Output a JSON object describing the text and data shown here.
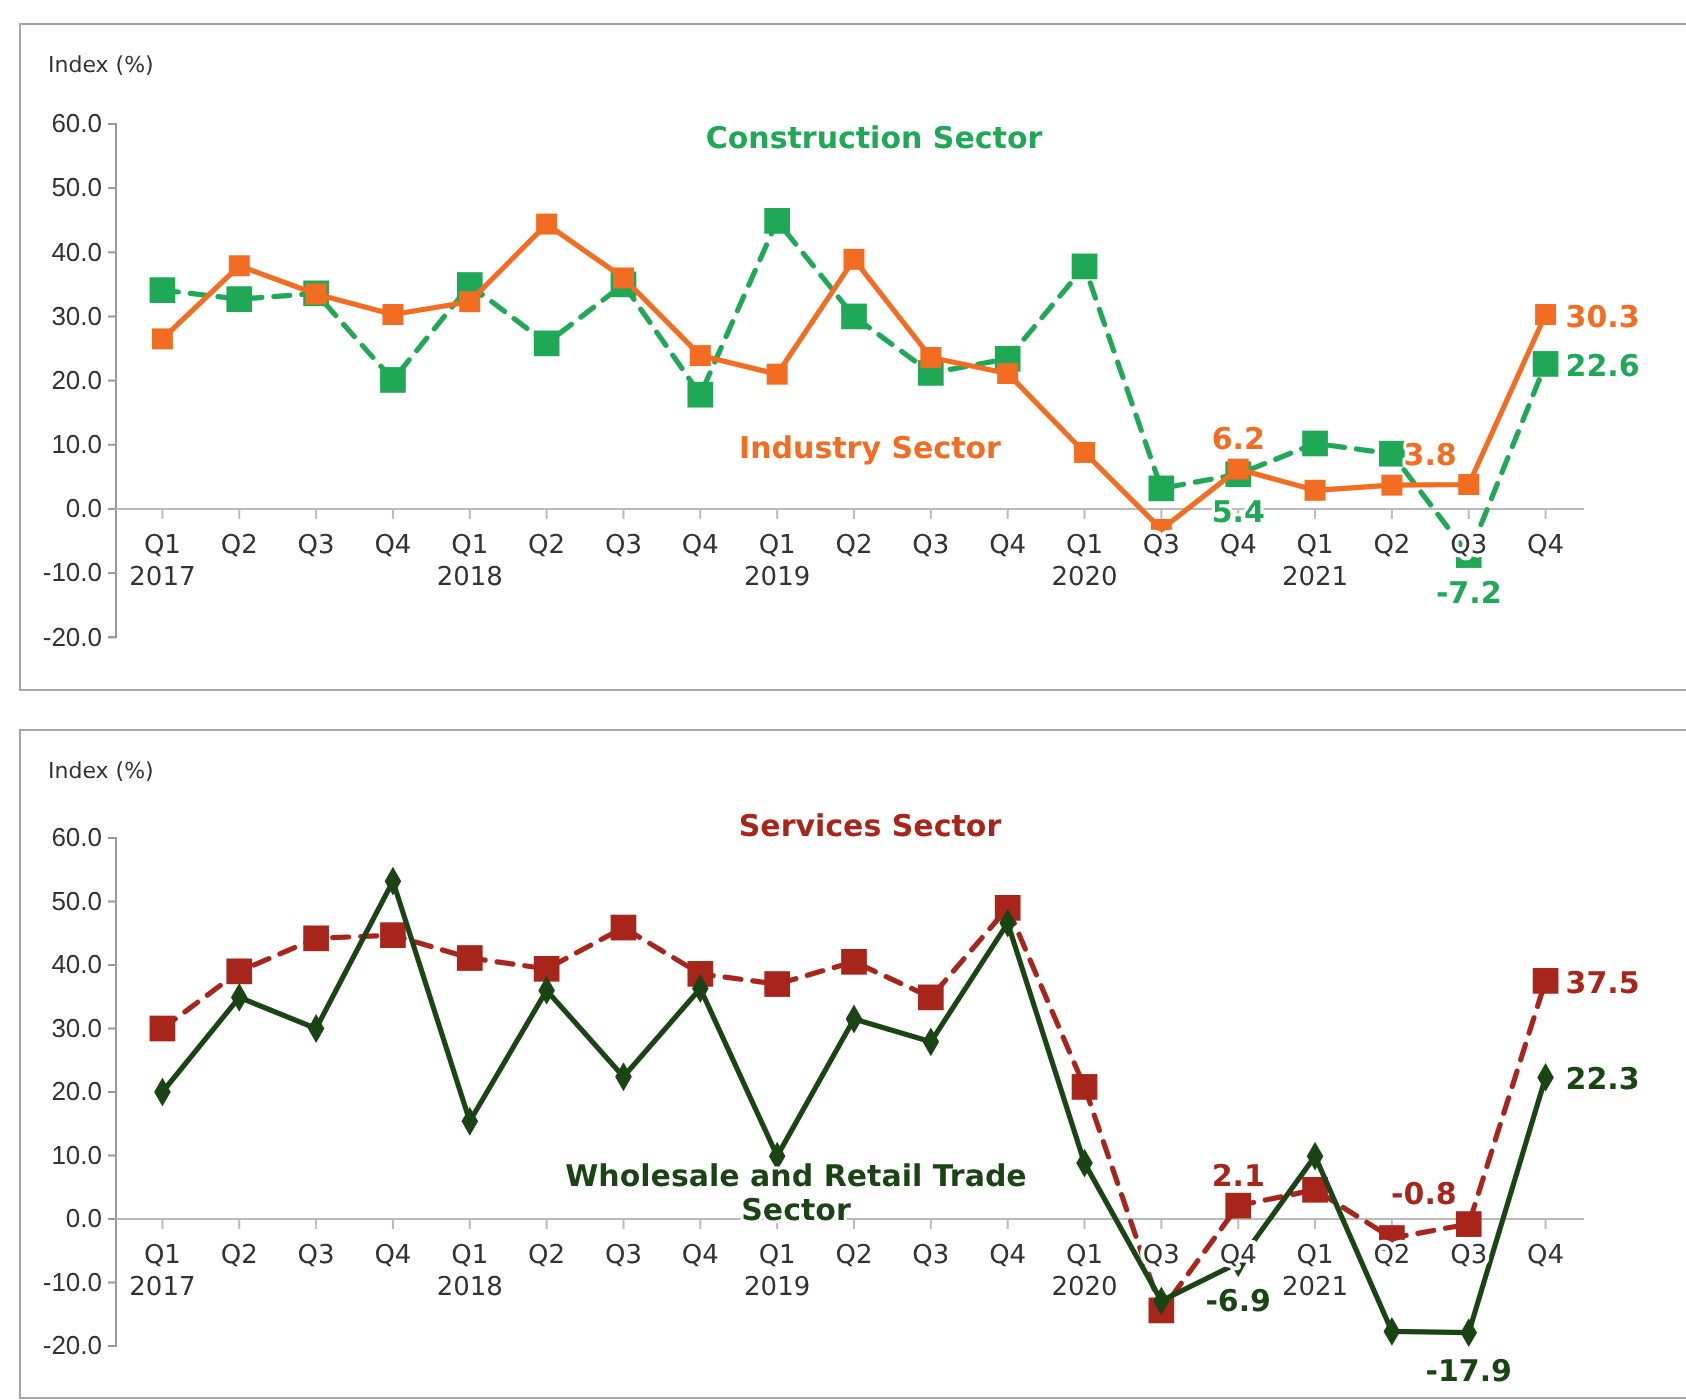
{
  "chart_data": [
    {
      "type": "line",
      "ylabel": "Index (%)",
      "categories": [
        "Q1\n2017",
        "Q2",
        "Q3",
        "Q4",
        "Q1\n2018",
        "Q2",
        "Q3",
        "Q4",
        "Q1\n2019",
        "Q2",
        "Q3",
        "Q4",
        "Q1\n2020",
        "Q3",
        "Q4",
        "Q1\n2021",
        "Q2",
        "Q3",
        "Q4"
      ],
      "ylim": [
        -20,
        60
      ],
      "yticks": [
        {
          "value": -20,
          "label": "-20.0"
        },
        {
          "value": -10,
          "label": "-10.0"
        },
        {
          "value": 0,
          "label": "0.0"
        },
        {
          "value": 10,
          "label": "10.0"
        },
        {
          "value": 20,
          "label": "20.0"
        },
        {
          "value": 30,
          "label": "30.0"
        },
        {
          "value": 40,
          "label": "40.0"
        },
        {
          "value": 50,
          "label": "50.0"
        },
        {
          "value": 60,
          "label": "60.0"
        }
      ],
      "grid": false,
      "legend": false,
      "series": [
        {
          "name": "Construction Sector",
          "color": "#1fa855",
          "marker": "square",
          "line_style": "dashed",
          "values": [
            34.1,
            32.7,
            33.6,
            20.1,
            34.9,
            25.8,
            35.0,
            17.8,
            44.9,
            30.0,
            21.2,
            23.4,
            37.8,
            3.2,
            5.4,
            10.2,
            8.6,
            -7.2,
            22.6
          ],
          "value_labels": [
            null,
            null,
            null,
            null,
            null,
            null,
            null,
            null,
            null,
            null,
            null,
            null,
            null,
            null,
            "5.4",
            null,
            null,
            "-7.2",
            "22.6"
          ]
        },
        {
          "name": "Industry Sector",
          "color": "#f26d21",
          "marker": "square",
          "line_style": "solid",
          "values": [
            26.5,
            37.9,
            33.5,
            30.3,
            32.3,
            44.4,
            36.0,
            23.9,
            21.0,
            38.9,
            23.6,
            21.1,
            8.8,
            -3.2,
            6.2,
            2.9,
            3.7,
            3.8,
            30.3
          ],
          "value_labels": [
            null,
            null,
            null,
            null,
            null,
            null,
            null,
            null,
            null,
            null,
            null,
            null,
            null,
            null,
            "6.2",
            null,
            null,
            "3.8",
            "30.3"
          ]
        }
      ]
    },
    {
      "type": "line",
      "ylabel": "Index (%)",
      "categories": [
        "Q1\n2017",
        "Q2",
        "Q3",
        "Q4",
        "Q1\n2018",
        "Q2",
        "Q3",
        "Q4",
        "Q1\n2019",
        "Q2",
        "Q3",
        "Q4",
        "Q1\n2020",
        "Q3",
        "Q4",
        "Q1\n2021",
        "Q2",
        "Q3",
        "Q4"
      ],
      "ylim": [
        -20,
        60
      ],
      "yticks": [
        {
          "value": -20,
          "label": "-20.0"
        },
        {
          "value": -10,
          "label": "-10.0"
        },
        {
          "value": 0,
          "label": "0.0"
        },
        {
          "value": 10,
          "label": "10.0"
        },
        {
          "value": 20,
          "label": "20.0"
        },
        {
          "value": 30,
          "label": "30.0"
        },
        {
          "value": 40,
          "label": "40.0"
        },
        {
          "value": 50,
          "label": "50.0"
        },
        {
          "value": 60,
          "label": "60.0"
        }
      ],
      "grid": false,
      "legend": false,
      "series": [
        {
          "name": "Services Sector",
          "color": "#a8251c",
          "marker": "square",
          "line_style": "dashed",
          "values": [
            30.0,
            39.0,
            44.2,
            44.7,
            41.1,
            39.4,
            45.9,
            38.6,
            37.0,
            40.5,
            34.9,
            49.0,
            20.8,
            -14.4,
            2.1,
            4.6,
            -3.0,
            -0.8,
            37.5
          ],
          "value_labels": [
            null,
            null,
            null,
            null,
            null,
            null,
            null,
            null,
            null,
            null,
            null,
            null,
            null,
            null,
            "2.1",
            null,
            null,
            "-0.8",
            "37.5"
          ]
        },
        {
          "name": "Wholesale and Retail Trade Sector",
          "color": "#1b4415",
          "marker": "diamond",
          "line_style": "solid",
          "values": [
            20.0,
            34.9,
            30.0,
            53.2,
            15.4,
            36.0,
            22.4,
            36.3,
            9.9,
            31.5,
            27.9,
            46.6,
            8.8,
            -12.9,
            -6.9,
            9.9,
            -17.7,
            -17.9,
            22.3
          ],
          "value_labels": [
            null,
            null,
            null,
            null,
            null,
            null,
            null,
            null,
            null,
            null,
            null,
            null,
            null,
            null,
            "-6.9",
            null,
            null,
            "-17.9",
            "22.3"
          ]
        }
      ]
    }
  ]
}
